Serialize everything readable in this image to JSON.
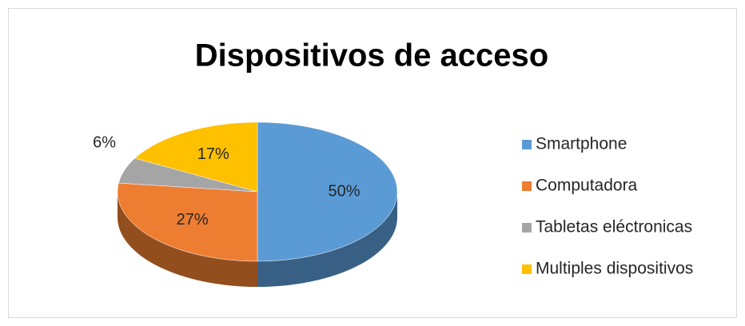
{
  "chart_data": {
    "type": "pie3d",
    "title": "Dispositivos de acceso",
    "categories": [
      "Smartphone",
      "Computadora",
      "Tabletas eléctronicas",
      "Multiples dispositivos"
    ],
    "values": [
      50,
      27,
      6,
      17
    ],
    "value_labels": [
      "50%",
      "27%",
      "6%",
      "17%"
    ],
    "colors": [
      "#5b9bd5",
      "#ed7d31",
      "#a5a5a5",
      "#ffc000"
    ],
    "legend": "right"
  }
}
